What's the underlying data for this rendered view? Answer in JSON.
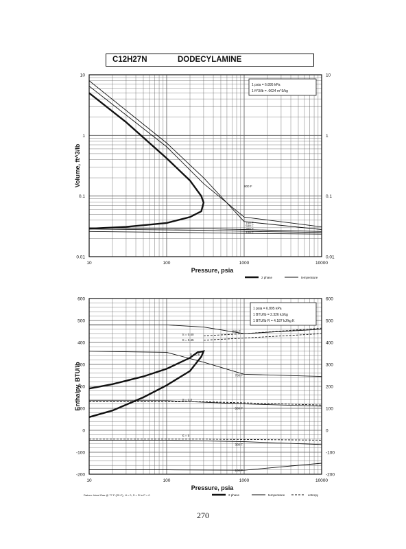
{
  "header": {
    "formula": "C12H27N",
    "compound_name": "DODECYLAMINE"
  },
  "page_number": "270",
  "chart_data": [
    {
      "type": "line",
      "xlabel": "Pressure, psia",
      "ylabel": "Volume, ft^3/lb",
      "x_scale": "log",
      "y_scale": "log",
      "xlim": [
        10,
        10000
      ],
      "ylim": [
        0.01,
        10
      ],
      "x_ticks": [
        "10",
        "100",
        "1000",
        "10000"
      ],
      "y_ticks": [
        "0.01",
        "0.1",
        "1",
        "10"
      ],
      "grid": true,
      "info_box": [
        "1 psia = 6.895 kPa",
        "1 ft^3/lb = .0624 m^3/kg"
      ],
      "legend": [
        {
          "label": "2 phase",
          "style": "thick"
        },
        {
          "label": "temperature",
          "style": "thin"
        }
      ],
      "curve_labels": [
        "900 F",
        "700 F",
        "500 F",
        "300 F",
        "100 F"
      ],
      "series": [
        {
          "name": "2 phase",
          "x": [
            10,
            30,
            100,
            200,
            280,
            300,
            280,
            200,
            100,
            30,
            10
          ],
          "y": [
            5.0,
            1.65,
            0.42,
            0.18,
            0.1,
            0.078,
            0.056,
            0.045,
            0.036,
            0.031,
            0.029
          ]
        },
        {
          "name": "700 F",
          "x": [
            10,
            100,
            300,
            1000,
            10000
          ],
          "y": [
            8.0,
            0.75,
            0.2,
            0.038,
            0.028
          ]
        },
        {
          "name": "900 F",
          "x": [
            10,
            100,
            300,
            1000,
            10000
          ],
          "y": [
            6.5,
            0.65,
            0.16,
            0.045,
            0.031
          ]
        },
        {
          "name": "500 F",
          "x": [
            10,
            300,
            1000,
            10000
          ],
          "y": [
            0.03,
            0.029,
            0.028,
            0.026
          ]
        },
        {
          "name": "300 F",
          "x": [
            10,
            300,
            1000,
            10000
          ],
          "y": [
            0.0285,
            0.0272,
            0.0262,
            0.025
          ]
        },
        {
          "name": "100 F",
          "x": [
            10,
            300,
            1000,
            10000
          ],
          "y": [
            0.026,
            0.0248,
            0.0242,
            0.0235
          ]
        }
      ]
    },
    {
      "type": "line",
      "xlabel": "Pressure, psia",
      "ylabel": "Enthalpy, BTU/lb",
      "x_scale": "log",
      "xlim": [
        10,
        10000
      ],
      "ylim": [
        -200,
        600
      ],
      "x_ticks": [
        "10",
        "100",
        "1000",
        "10000"
      ],
      "y_ticks": [
        "600",
        "500",
        "400",
        "300",
        "200",
        "100",
        "0",
        "-100",
        "-200"
      ],
      "grid": true,
      "info_box": [
        "1 psia = 6.895 kPa",
        "1 BTU/lb = 2.326 kJ/kg",
        "1 BTU/lb R = 4.187 kJ/kg K"
      ],
      "footnote": "Datum: Ideal Gas @ 77 F (25 C), H = 0, S = R ln P = 0",
      "legend": [
        {
          "label": "2 phase",
          "style": "thick"
        },
        {
          "label": "temperature",
          "style": "thin"
        },
        {
          "label": "entropy",
          "style": "dashed"
        }
      ],
      "curve_labels": [
        "900 F",
        "700 F",
        "500 F",
        "300 F",
        "100 F",
        "S = 0.40",
        "S = 0.45",
        "S = 0.6",
        "S = 1.2",
        "S = 0"
      ],
      "series": [
        {
          "name": "2 phase",
          "x": [
            10,
            20,
            50,
            100,
            200,
            250,
            300,
            280,
            200,
            100,
            50,
            20,
            10
          ],
          "y": [
            190,
            210,
            245,
            280,
            330,
            355,
            360,
            335,
            270,
            205,
            150,
            90,
            60
          ]
        },
        {
          "name": "900 F",
          "x": [
            10,
            100,
            300,
            1000,
            3000,
            10000
          ],
          "y": [
            480,
            480,
            470,
            440,
            450,
            460
          ]
        },
        {
          "name": "700 F",
          "x": [
            10,
            100,
            300,
            1000,
            10000
          ],
          "y": [
            360,
            355,
            310,
            255,
            245
          ]
        },
        {
          "name": "500 F",
          "x": [
            10,
            100,
            1000,
            10000
          ],
          "y": [
            135,
            135,
            120,
            110
          ]
        },
        {
          "name": "300 F",
          "x": [
            10,
            100,
            1000,
            10000
          ],
          "y": [
            -45,
            -45,
            -52,
            -65
          ]
        },
        {
          "name": "100 F",
          "x": [
            10,
            100,
            1000,
            10000
          ],
          "y": [
            -180,
            -180,
            -182,
            -150
          ]
        },
        {
          "name": "S = 0.45",
          "x": [
            300,
            1000,
            10000
          ],
          "y": [
            410,
            420,
            440
          ]
        },
        {
          "name": "S = 0.40",
          "x": [
            300,
            1000,
            10000
          ],
          "y": [
            430,
            440,
            465
          ]
        },
        {
          "name": "S = 1.2",
          "x": [
            10,
            300,
            1000,
            10000
          ],
          "y": [
            130,
            130,
            125,
            115
          ]
        },
        {
          "name": "S = 0",
          "x": [
            10,
            300,
            1000,
            10000
          ],
          "y": [
            -40,
            -40,
            -42,
            -45
          ]
        }
      ]
    }
  ]
}
